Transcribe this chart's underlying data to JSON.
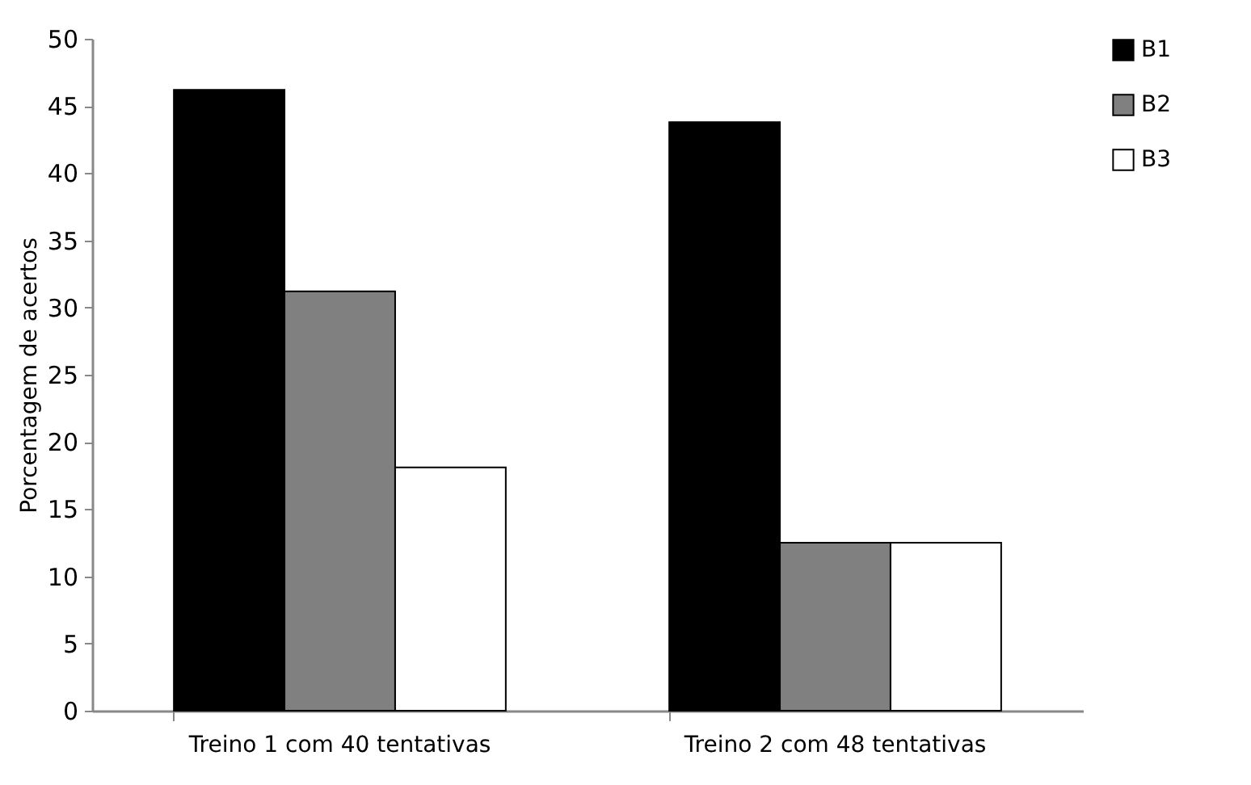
{
  "chart_data": {
    "type": "bar",
    "ylabel": "Porcentagem de acertos",
    "categories": [
      "Treino 1 com 40 tentativas",
      "Treino 2 com 48 tentativas"
    ],
    "series": [
      {
        "name": "B1",
        "color": "#000000",
        "values": [
          46.2,
          43.8
        ]
      },
      {
        "name": "B2",
        "color": "#808080",
        "values": [
          31.2,
          12.5
        ]
      },
      {
        "name": "B3",
        "color": "#ffffff",
        "values": [
          18.1,
          12.5
        ]
      }
    ],
    "ylim": [
      0,
      50
    ],
    "yticks": [
      0,
      5,
      10,
      15,
      20,
      25,
      30,
      35,
      40,
      45,
      50
    ],
    "grid": false,
    "legend": "right"
  }
}
